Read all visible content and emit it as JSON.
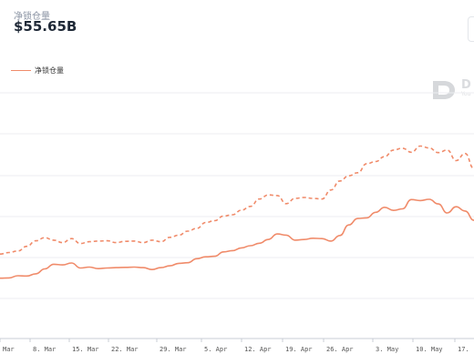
{
  "header": {
    "metric_label": "净锁仓量",
    "metric_value": "$55.65B"
  },
  "legend": {
    "label": "净锁仓量"
  },
  "watermark": {
    "name": "D",
    "sub": "You"
  },
  "colors": {
    "series": "#f08b6a",
    "gridline": "#eceef1",
    "axis": "#c9ced6"
  },
  "chart_data": {
    "type": "line",
    "x_tick_labels": [
      "Mar",
      "8. Mar",
      "15. Mar",
      "22. Mar",
      "29. Mar",
      "5. Apr",
      "12. Apr",
      "19. Apr",
      "26. Apr",
      "3. May",
      "10. May",
      "17."
    ],
    "grid": true,
    "legend_position": "top-left",
    "series": [
      {
        "name": "净锁仓量",
        "style": "solid",
        "values": [
          29.5,
          29.6,
          30.3,
          30.2,
          30.9,
          32.5,
          34.0,
          33.8,
          34.4,
          32.8,
          33.1,
          32.6,
          32.8,
          32.9,
          33.0,
          33.1,
          32.9,
          32.3,
          32.9,
          33.5,
          34.3,
          34.5,
          35.8,
          36.4,
          36.6,
          38.0,
          38.4,
          39.3,
          40.0,
          40.8,
          42.0,
          43.8,
          43.4,
          41.8,
          42.0,
          42.4,
          42.3,
          41.5,
          43.3,
          46.7,
          48.8,
          49.0,
          50.8,
          52.4,
          51.4,
          51.9,
          54.9,
          54.6,
          55.0,
          53.5,
          50.6,
          52.6,
          51.2,
          48.2
        ],
        "ylim_note": "same y scale as dashed series"
      },
      {
        "name": "",
        "style": "dashed",
        "values": [
          37.3,
          37.8,
          38.3,
          39.8,
          41.6,
          42.6,
          41.8,
          41.0,
          42.3,
          40.7,
          41.3,
          41.5,
          41.6,
          41.0,
          41.4,
          41.5,
          41.0,
          41.8,
          41.3,
          42.7,
          43.4,
          44.7,
          45.6,
          47.5,
          48.1,
          49.6,
          50.0,
          51.5,
          52.7,
          55.1,
          56.4,
          56.2,
          53.6,
          55.3,
          55.6,
          55.3,
          55.1,
          58.0,
          60.9,
          62.6,
          63.6,
          66.5,
          67.2,
          68.8,
          70.9,
          71.5,
          70.2,
          72.2,
          71.6,
          70.1,
          70.9,
          67.5,
          69.8,
          64.9
        ],
        "ylim_note": "same y scale as solid series"
      }
    ],
    "ylim": [
      10,
      90
    ]
  }
}
